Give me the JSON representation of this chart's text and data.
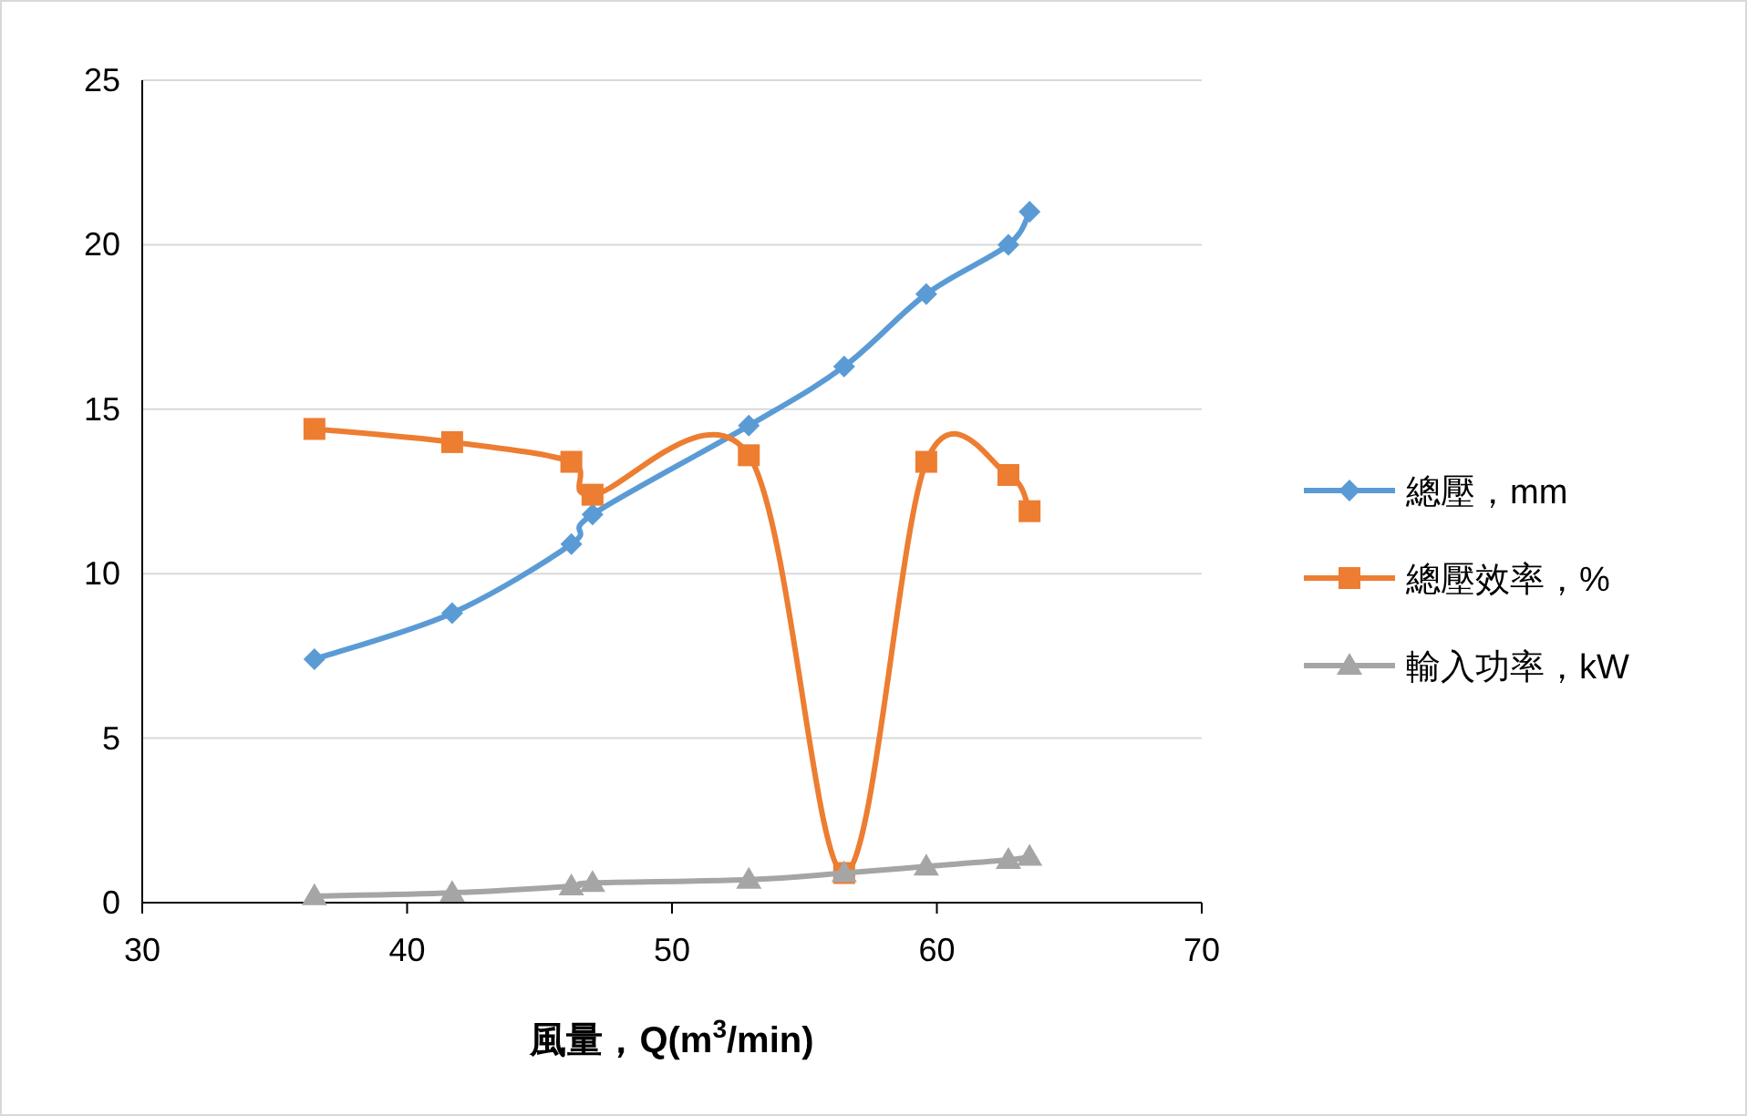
{
  "chart_data": {
    "type": "line",
    "xlabel": "**風量，Q(m$^{3}$/min)**",
    "xlim": [
      30,
      70
    ],
    "xticks": [
      30,
      40,
      50,
      60,
      70
    ],
    "ylim": [
      0,
      25
    ],
    "yticks": [
      0,
      5,
      10,
      15,
      20,
      25
    ],
    "grid": "y",
    "legend": "right",
    "line_style": "solid",
    "x": [
      36.5,
      41.7,
      46.2,
      47.0,
      52.9,
      56.5,
      59.6,
      62.7,
      63.5
    ],
    "series": [
      {
        "name": "總壓，mm",
        "color": "#5b9bd5",
        "marker": "diamond",
        "values": [
          7.4,
          8.8,
          10.9,
          11.8,
          14.5,
          16.3,
          18.5,
          20.0,
          21.0
        ]
      },
      {
        "name": "總壓效率，%",
        "color": "#ed7d31",
        "marker": "square",
        "values": [
          14.4,
          14.0,
          13.4,
          12.4,
          13.6,
          0.9,
          13.4,
          13.0,
          11.9
        ]
      },
      {
        "name": "輸入功率，kW",
        "color": "#a5a5a5",
        "marker": "triangle",
        "values": [
          0.2,
          0.3,
          0.5,
          0.6,
          0.7,
          0.9,
          1.1,
          1.3,
          1.4
        ]
      }
    ]
  }
}
